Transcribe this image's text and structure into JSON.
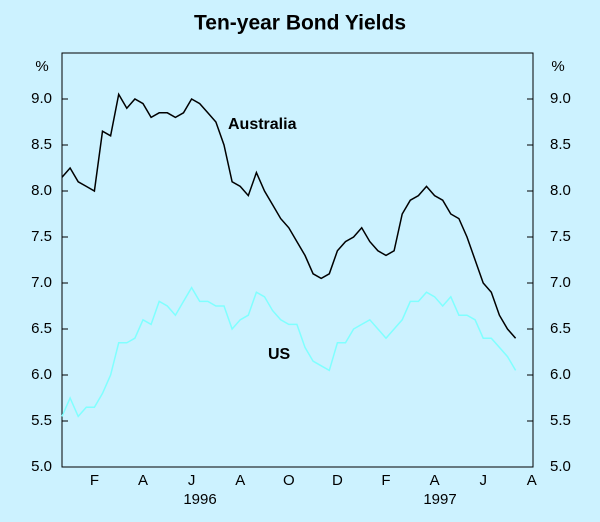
{
  "chart_data": {
    "type": "line",
    "title": "Ten-year Bond Yields",
    "y_unit": "%",
    "categories": [
      null,
      null,
      null,
      null,
      "F",
      null,
      null,
      null,
      null,
      null,
      "A",
      null,
      null,
      null,
      null,
      null,
      "J",
      null,
      null,
      null,
      null,
      null,
      "A",
      null,
      null,
      null,
      null,
      null,
      "O",
      null,
      null,
      null,
      null,
      null,
      "D",
      null,
      null,
      null,
      null,
      null,
      "F",
      null,
      null,
      null,
      null,
      null,
      "A",
      null,
      null,
      null,
      null,
      null,
      "J",
      null,
      null,
      null,
      null,
      null,
      "A"
    ],
    "year_labels": [
      "1996",
      "1997"
    ],
    "series": [
      {
        "name": "Australia",
        "color": "#000000",
        "values": [
          8.15,
          8.25,
          8.1,
          8.05,
          8.0,
          8.65,
          8.6,
          9.05,
          8.9,
          9.0,
          8.95,
          8.8,
          8.85,
          8.85,
          8.8,
          8.85,
          9.0,
          8.95,
          8.85,
          8.75,
          8.5,
          8.1,
          8.05,
          7.95,
          8.2,
          8.0,
          7.85,
          7.7,
          7.6,
          7.45,
          7.3,
          7.1,
          7.05,
          7.1,
          7.35,
          7.45,
          7.5,
          7.6,
          7.45,
          7.35,
          7.3,
          7.35,
          7.75,
          7.9,
          7.95,
          8.05,
          7.95,
          7.9,
          7.75,
          7.7,
          7.5,
          7.25,
          7.0,
          6.9,
          6.65,
          6.5,
          6.4,
          null,
          null
        ]
      },
      {
        "name": "US",
        "color": "#80ffff",
        "values": [
          5.55,
          5.75,
          5.55,
          5.65,
          5.65,
          5.8,
          6.0,
          6.35,
          6.35,
          6.4,
          6.6,
          6.55,
          6.8,
          6.75,
          6.65,
          6.8,
          6.95,
          6.8,
          6.8,
          6.75,
          6.75,
          6.5,
          6.6,
          6.65,
          6.9,
          6.85,
          6.7,
          6.6,
          6.55,
          6.55,
          6.3,
          6.15,
          6.1,
          6.05,
          6.35,
          6.35,
          6.5,
          6.55,
          6.6,
          6.5,
          6.4,
          6.5,
          6.6,
          6.8,
          6.8,
          6.9,
          6.85,
          6.75,
          6.85,
          6.65,
          6.65,
          6.6,
          6.4,
          6.4,
          6.3,
          6.2,
          6.05,
          null,
          null
        ]
      }
    ],
    "ylim": [
      5,
      9.5
    ],
    "yticks": [
      {
        "value": 5,
        "label": "5.0"
      },
      5.5,
      {
        "value": 6,
        "label": "6.0"
      },
      6.5,
      {
        "value": 7,
        "label": "7.0"
      },
      7.5,
      {
        "value": 8,
        "label": "8.0"
      },
      8.5,
      {
        "value": 9,
        "label": "9.0"
      }
    ]
  }
}
